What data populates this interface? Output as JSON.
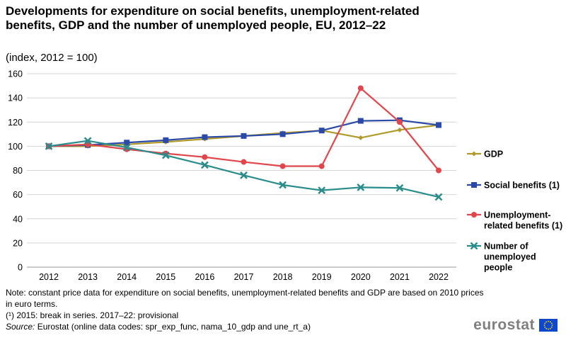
{
  "title": "Developments for expenditure on social benefits, unemployment-related benefits, GDP and the number of unemployed people, EU, 2012–22",
  "subtitle": "(index, 2012 = 100)",
  "chart_data": {
    "type": "line",
    "title": "Developments for expenditure on social benefits, unemployment-related benefits, GDP and the number of unemployed people, EU, 2012–22",
    "ylabel": "index, 2012 = 100",
    "xlabel": "",
    "categories": [
      "2012",
      "2013",
      "2014",
      "2015",
      "2016",
      "2017",
      "2018",
      "2019",
      "2020",
      "2021",
      "2022"
    ],
    "ylim": [
      0,
      160
    ],
    "yticks": [
      0,
      20,
      40,
      60,
      80,
      100,
      120,
      140,
      160
    ],
    "grid": true,
    "legend_position": "right",
    "series": [
      {
        "name": "GDP",
        "color": "#b09a2c",
        "marker": "diamond",
        "values": [
          100,
          100,
          101.5,
          103.5,
          106,
          108.5,
          111,
          113,
          107,
          113.5,
          117.5
        ]
      },
      {
        "name": "Social benefits (1)",
        "color": "#2b4aa8",
        "marker": "square",
        "values": [
          100,
          101,
          103,
          105,
          107.5,
          108.5,
          110,
          113,
          121,
          121.5,
          117.5
        ]
      },
      {
        "name": "Unemployment-related benefits (1)",
        "color": "#e0474c",
        "marker": "circle",
        "values": [
          100,
          101.5,
          97.5,
          94,
          91,
          87,
          83.5,
          83.5,
          148,
          120,
          80
        ]
      },
      {
        "name": "Number of unemployed people",
        "color": "#2b8c8c",
        "marker": "x",
        "values": [
          100,
          104.5,
          99,
          92.5,
          84.5,
          76,
          68,
          63.5,
          66,
          65.5,
          58
        ]
      }
    ]
  },
  "legend": {
    "gdp": [
      "GDP"
    ],
    "social": [
      "Social benefits (1)"
    ],
    "unemp_benefits": [
      "Unemployment-",
      "related benefits (1)"
    ],
    "unemployed": [
      "Number of",
      "unemployed",
      "people"
    ]
  },
  "notes": {
    "note": "Note: constant price data for expenditure  on social benefits, unemployment-related  benefits and GDP are based on 2010 prices in euro terms.",
    "footnote": "(¹) 2015: break in series. 2017–22: provisional",
    "source_label": "Source:",
    "source_text": " Eurostat (online data codes: spr_exp_func, nama_10_gdp and une_rt_a)"
  },
  "brand": {
    "name": "eurostat",
    "flag_color": "#0e47cb",
    "star_color": "#ffdd00"
  }
}
